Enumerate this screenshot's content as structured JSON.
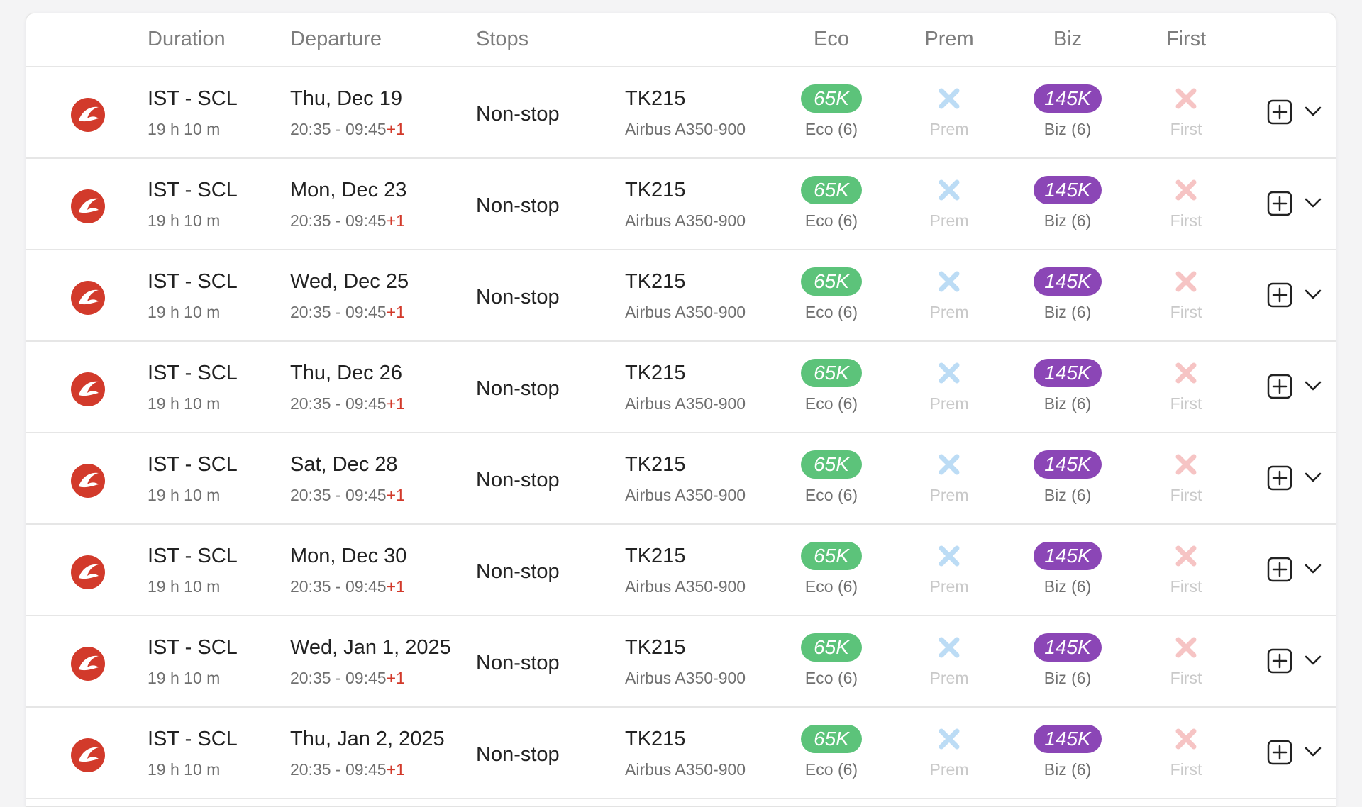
{
  "header": {
    "duration": "Duration",
    "departure": "Departure",
    "stops": "Stops",
    "eco": "Eco",
    "prem": "Prem",
    "biz": "Biz",
    "first": "First"
  },
  "colors": {
    "eco_pill": "#5cc37a",
    "biz_pill": "#8b46b6",
    "airline_red": "#d23a2b",
    "prem_unavailable": "#bcdcf5",
    "first_unavailable": "#f6c4c4"
  },
  "icons": {
    "airline_logo": "turkish-airlines-logo-icon",
    "prem_unavailable": "x-icon",
    "first_unavailable": "x-icon",
    "add": "plus-square-icon",
    "expand": "chevron-down-icon"
  },
  "flights": [
    {
      "route": "IST - SCL",
      "duration": "19 h 10 m",
      "date": "Thu, Dec 19",
      "times": "20:35 - 09:45",
      "day_offset": "+1",
      "stops": "Non-stop",
      "flight_no": "TK215",
      "aircraft": "Airbus A350-900",
      "eco_price": "65K",
      "eco_label": "Eco (6)",
      "prem_label": "Prem",
      "biz_price": "145K",
      "biz_label": "Biz (6)",
      "first_label": "First"
    },
    {
      "route": "IST - SCL",
      "duration": "19 h 10 m",
      "date": "Mon, Dec 23",
      "times": "20:35 - 09:45",
      "day_offset": "+1",
      "stops": "Non-stop",
      "flight_no": "TK215",
      "aircraft": "Airbus A350-900",
      "eco_price": "65K",
      "eco_label": "Eco (6)",
      "prem_label": "Prem",
      "biz_price": "145K",
      "biz_label": "Biz (6)",
      "first_label": "First"
    },
    {
      "route": "IST - SCL",
      "duration": "19 h 10 m",
      "date": "Wed, Dec 25",
      "times": "20:35 - 09:45",
      "day_offset": "+1",
      "stops": "Non-stop",
      "flight_no": "TK215",
      "aircraft": "Airbus A350-900",
      "eco_price": "65K",
      "eco_label": "Eco (6)",
      "prem_label": "Prem",
      "biz_price": "145K",
      "biz_label": "Biz (6)",
      "first_label": "First"
    },
    {
      "route": "IST - SCL",
      "duration": "19 h 10 m",
      "date": "Thu, Dec 26",
      "times": "20:35 - 09:45",
      "day_offset": "+1",
      "stops": "Non-stop",
      "flight_no": "TK215",
      "aircraft": "Airbus A350-900",
      "eco_price": "65K",
      "eco_label": "Eco (6)",
      "prem_label": "Prem",
      "biz_price": "145K",
      "biz_label": "Biz (6)",
      "first_label": "First"
    },
    {
      "route": "IST - SCL",
      "duration": "19 h 10 m",
      "date": "Sat, Dec 28",
      "times": "20:35 - 09:45",
      "day_offset": "+1",
      "stops": "Non-stop",
      "flight_no": "TK215",
      "aircraft": "Airbus A350-900",
      "eco_price": "65K",
      "eco_label": "Eco (6)",
      "prem_label": "Prem",
      "biz_price": "145K",
      "biz_label": "Biz (6)",
      "first_label": "First"
    },
    {
      "route": "IST - SCL",
      "duration": "19 h 10 m",
      "date": "Mon, Dec 30",
      "times": "20:35 - 09:45",
      "day_offset": "+1",
      "stops": "Non-stop",
      "flight_no": "TK215",
      "aircraft": "Airbus A350-900",
      "eco_price": "65K",
      "eco_label": "Eco (6)",
      "prem_label": "Prem",
      "biz_price": "145K",
      "biz_label": "Biz (6)",
      "first_label": "First"
    },
    {
      "route": "IST - SCL",
      "duration": "19 h 10 m",
      "date": "Wed, Jan 1, 2025",
      "times": "20:35 - 09:45",
      "day_offset": "+1",
      "stops": "Non-stop",
      "flight_no": "TK215",
      "aircraft": "Airbus A350-900",
      "eco_price": "65K",
      "eco_label": "Eco (6)",
      "prem_label": "Prem",
      "biz_price": "145K",
      "biz_label": "Biz (6)",
      "first_label": "First"
    },
    {
      "route": "IST - SCL",
      "duration": "19 h 10 m",
      "date": "Thu, Jan 2, 2025",
      "times": "20:35 - 09:45",
      "day_offset": "+1",
      "stops": "Non-stop",
      "flight_no": "TK215",
      "aircraft": "Airbus A350-900",
      "eco_price": "65K",
      "eco_label": "Eco (6)",
      "prem_label": "Prem",
      "biz_price": "145K",
      "biz_label": "Biz (6)",
      "first_label": "First"
    }
  ]
}
